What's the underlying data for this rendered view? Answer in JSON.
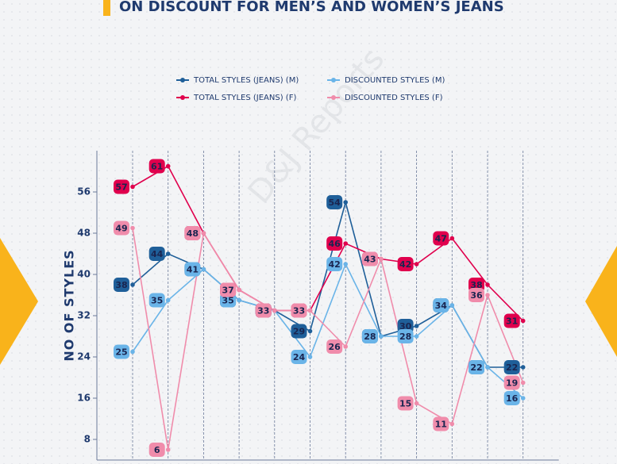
{
  "chart_data": {
    "type": "line",
    "title": "ON DISCOUNT FOR MEN’S AND WOMEN’S JEANS",
    "watermark": "D&J Reports",
    "y_label": "NO OF STYLES",
    "categories": [
      null,
      null,
      null,
      null,
      null,
      null,
      null,
      null,
      null,
      null,
      null,
      null
    ],
    "series": [
      {
        "name": "TOTAL STYLES (JEANS) (M)",
        "color": "#1f5f99",
        "values": [
          38,
          44,
          41,
          35,
          33,
          29,
          54,
          28,
          30,
          34,
          22,
          22
        ]
      },
      {
        "name": "DISCOUNTED STYLES (M)",
        "color": "#6ab4e8",
        "values": [
          25,
          35,
          41,
          35,
          33,
          24,
          42,
          28,
          28,
          34,
          22,
          16
        ]
      },
      {
        "name": "TOTAL STYLES (JEANS) (F)",
        "color": "#e0004d",
        "values": [
          57,
          61,
          48,
          37,
          33,
          33,
          46,
          43,
          42,
          47,
          38,
          31
        ]
      },
      {
        "name": "DISCOUNTED STYLES (F)",
        "color": "#f08cab",
        "values": [
          49,
          6,
          48,
          37,
          33,
          33,
          26,
          43,
          15,
          11,
          36,
          19
        ]
      }
    ],
    "ylim": [
      4,
      64
    ],
    "yticks": [
      8,
      16,
      24,
      32,
      40,
      48,
      56
    ],
    "legend": "top"
  }
}
